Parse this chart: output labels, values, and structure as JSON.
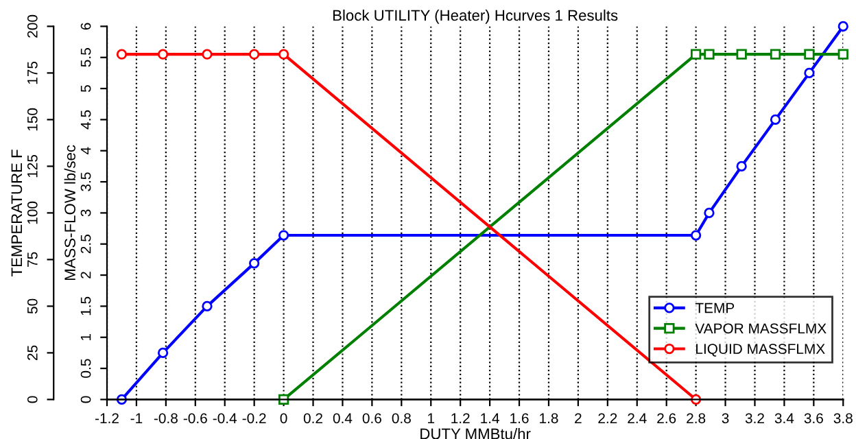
{
  "chart_data": {
    "type": "line",
    "title": "Block UTILITY (Heater) Hcurves 1 Results",
    "xlabel": "DUTY MMBtu/hr",
    "ylabel": "TEMPERATURE F",
    "y2label": "MASS-FLOW lb/sec",
    "xlim": [
      -1.2,
      3.8
    ],
    "xticks": [
      -1.2,
      -1,
      -0.8,
      -0.6,
      -0.4,
      -0.2,
      0,
      0.2,
      0.4,
      0.6,
      0.8,
      1,
      1.2,
      1.4,
      1.6,
      1.8,
      2,
      2.2,
      2.4,
      2.6,
      2.8,
      3,
      3.2,
      3.4,
      3.6,
      3.8
    ],
    "ylim": [
      0,
      200
    ],
    "yticks": [
      0,
      25,
      50,
      75,
      100,
      125,
      150,
      175,
      200
    ],
    "y2lim": [
      0,
      6
    ],
    "y2ticks": [
      0,
      0.5,
      1,
      1.5,
      2,
      2.5,
      3,
      3.5,
      4,
      4.5,
      5,
      5.5,
      6
    ],
    "grid": "x",
    "legend": "bottom right",
    "line_style": "solid",
    "series": [
      {
        "name": "TEMP",
        "color": "#0000ff",
        "marker": "circle",
        "x": [
          -1.1,
          -0.82,
          -0.52,
          -0.2,
          0,
          2.8,
          2.89,
          3.11,
          3.34,
          3.57,
          3.8
        ],
        "values": [
          0,
          25,
          50,
          73,
          88,
          88,
          100,
          125,
          150,
          175,
          200
        ]
      },
      {
        "name": "VAPOR MASSFLMX",
        "color": "#008000",
        "marker": "square",
        "axis": "y2",
        "x": [
          0,
          2.8,
          2.89,
          3.11,
          3.34,
          3.57,
          3.8
        ],
        "values": [
          0,
          5.55,
          5.55,
          5.55,
          5.55,
          5.55,
          5.55
        ]
      },
      {
        "name": "LIQUID MASSFLMX",
        "color": "#ff0000",
        "marker": "circle",
        "axis": "y2",
        "x": [
          -1.1,
          -0.82,
          -0.52,
          -0.2,
          0,
          2.8
        ],
        "values": [
          5.55,
          5.55,
          5.55,
          5.55,
          5.55,
          0
        ]
      }
    ]
  }
}
